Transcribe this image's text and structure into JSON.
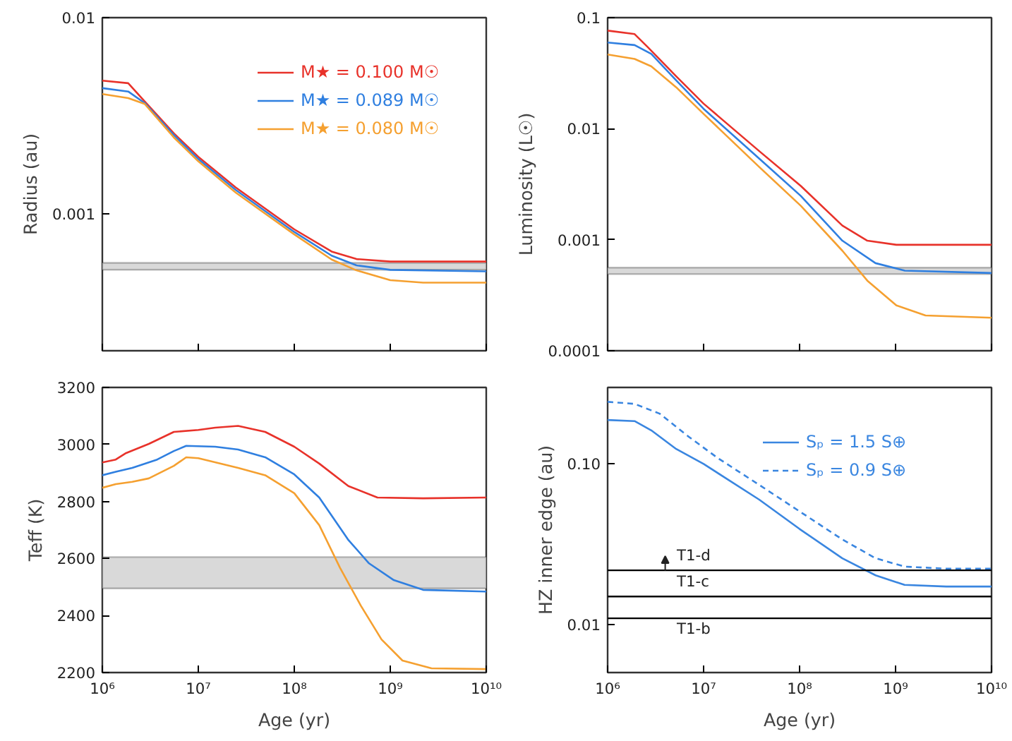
{
  "chart_data": [
    {
      "type": "line",
      "ylabel": "Radius (au)",
      "log": "xy",
      "grid": false,
      "legend": "top right",
      "tick_labels": "y",
      "xlim": [
        1000000,
        10000000000
      ],
      "ylim": [
        0.0002,
        0.01
      ],
      "xticks": [
        {
          "value": 1000000,
          "label": null
        },
        {
          "value": 10000000,
          "label": null
        },
        {
          "value": 100000000,
          "label": null
        },
        {
          "value": 1000000000,
          "label": null
        },
        {
          "value": 10000000000,
          "label": null
        }
      ],
      "yticks": [
        0.001,
        0.01
      ],
      "bands": [
        {
          "axis": "y",
          "from": 0.000518,
          "to": 0.000561,
          "color": "#d9d9d9"
        }
      ],
      "series": [
        {
          "name": "M★ = 0.100 M☉",
          "color": "#e8322a",
          "x": [
            1000000,
            1860000,
            2760000,
            5560000,
            10000000,
            24600000,
            100000000,
            245000000,
            445000000,
            1000000000,
            10000000000
          ],
          "values": [
            0.00477,
            0.00463,
            0.00374,
            0.00257,
            0.00195,
            0.00136,
            0.000832,
            0.000641,
            0.000587,
            0.00057,
            0.00057
          ]
        },
        {
          "name": "M★ = 0.089 M☉",
          "color": "#2f7fe0",
          "x": [
            1000000,
            1860000,
            2760000,
            5560000,
            10000000,
            24600000,
            100000000,
            245000000,
            445000000,
            1000000000,
            10000000000
          ],
          "values": [
            0.00437,
            0.0042,
            0.00367,
            0.00252,
            0.0019,
            0.00132,
            0.000807,
            0.000611,
            0.000545,
            0.000517,
            0.000508
          ]
        },
        {
          "name": "M★ = 0.080 M☉",
          "color": "#f5a030",
          "x": [
            1000000,
            1860000,
            2760000,
            5560000,
            10000000,
            24600000,
            100000000,
            245000000,
            445000000,
            1000000000,
            2200000000,
            10000000000
          ],
          "values": [
            0.00408,
            0.00389,
            0.00363,
            0.00245,
            0.00185,
            0.00128,
            0.000784,
            0.000584,
            0.000514,
            0.000458,
            0.000445,
            0.000445
          ]
        }
      ]
    },
    {
      "type": "line",
      "ylabel": "Luminosity (L☉)",
      "log": "xy",
      "grid": false,
      "tick_labels": "y",
      "xlim": [
        1000000,
        10000000000
      ],
      "ylim": [
        0.0001,
        0.1
      ],
      "xticks": [
        {
          "value": 1000000,
          "label": null
        },
        {
          "value": 10000000,
          "label": null
        },
        {
          "value": 100000000,
          "label": null
        },
        {
          "value": 1000000000,
          "label": null
        },
        {
          "value": 10000000000,
          "label": null
        }
      ],
      "yticks": [
        0.0001,
        0.001,
        0.01,
        0.1
      ],
      "bands": [
        {
          "axis": "y",
          "from": 0.00049,
          "to": 0.00056,
          "color": "#d9d9d9"
        }
      ],
      "series": [
        {
          "color": "#e8322a",
          "x": [
            1000000,
            1910000,
            2580000,
            5180000,
            10000000,
            38000000,
            103000000,
            279000000,
            508000000,
            1020000000,
            10000000000
          ],
          "values": [
            0.0764,
            0.0711,
            0.055,
            0.0296,
            0.0168,
            0.00628,
            0.00305,
            0.00134,
            0.00098,
            0.0009,
            0.0009
          ]
        },
        {
          "color": "#2f7fe0",
          "x": [
            1000000,
            1910000,
            2850000,
            5180000,
            10000000,
            38000000,
            103000000,
            279000000,
            618000000,
            1250000000,
            10000000000
          ],
          "values": [
            0.0597,
            0.0566,
            0.0471,
            0.0272,
            0.0151,
            0.00538,
            0.00248,
            0.00098,
            0.000615,
            0.000527,
            0.000501
          ]
        },
        {
          "color": "#f5a030",
          "x": [
            1000000,
            1910000,
            2850000,
            5180000,
            10000000,
            38000000,
            103000000,
            279000000,
            508000000,
            1020000000,
            2050000000,
            10000000000
          ],
          "values": [
            0.0466,
            0.0425,
            0.0364,
            0.0236,
            0.0136,
            0.00452,
            0.00202,
            0.000796,
            0.000428,
            0.000256,
            0.000208,
            0.000198
          ]
        }
      ]
    },
    {
      "type": "line",
      "xlabel": "Age (yr)",
      "ylabel": "Teff (K)",
      "log": "x",
      "grid": false,
      "xlim": [
        1000000,
        10000000000
      ],
      "ylim": [
        2200,
        3200
      ],
      "xticks": [
        {
          "value": 1000000,
          "label": "10⁶"
        },
        {
          "value": 10000000,
          "label": "10⁷"
        },
        {
          "value": 100000000,
          "label": "10⁸"
        },
        {
          "value": 1000000000,
          "label": "10⁹"
        },
        {
          "value": 10000000000,
          "label": "10¹⁰"
        }
      ],
      "yticks": [
        2200,
        2400,
        2600,
        2800,
        3000,
        3200
      ],
      "bands": [
        {
          "axis": "y",
          "from": 2495,
          "to": 2605,
          "color": "#d9d9d9"
        }
      ],
      "series": [
        {
          "color": "#e8322a",
          "x": [
            1000000,
            1380000,
            1770000,
            3050000,
            5560000,
            10000000,
            15000000,
            26000000,
            49800000,
            100000000,
            182000000,
            366000000,
            735000000,
            2200000000,
            10000000000
          ],
          "values": [
            2937,
            2947,
            2970,
            3002,
            3044,
            3051,
            3059,
            3065,
            3044,
            2992,
            2933,
            2854,
            2814,
            2811,
            2814
          ]
        },
        {
          "color": "#2f7fe0",
          "x": [
            1000000,
            1380000,
            2050000,
            3730000,
            5560000,
            7480000,
            15000000,
            26000000,
            49800000,
            100000000,
            182000000,
            366000000,
            601000000,
            1090000000,
            2200000000,
            10000000000
          ],
          "values": [
            2892,
            2904,
            2918,
            2947,
            2977,
            2995,
            2992,
            2982,
            2955,
            2895,
            2814,
            2665,
            2583,
            2524,
            2490,
            2484
          ]
        },
        {
          "color": "#f5a030",
          "x": [
            1000000,
            1380000,
            2050000,
            3050000,
            5560000,
            7480000,
            10000000,
            26000000,
            49800000,
            100000000,
            182000000,
            299000000,
            493000000,
            811000000,
            1340000000,
            2690000000,
            10000000000
          ],
          "values": [
            2848,
            2861,
            2869,
            2881,
            2925,
            2955,
            2952,
            2918,
            2892,
            2829,
            2717,
            2568,
            2435,
            2316,
            2242,
            2215,
            2212
          ]
        }
      ]
    },
    {
      "type": "line",
      "xlabel": "Age (yr)",
      "ylabel": "HZ inner edge (au)",
      "log": "xy",
      "grid": false,
      "legend": "top right",
      "xlim": [
        1000000,
        10000000000
      ],
      "ylim": [
        0.005,
        0.3
      ],
      "xticks": [
        {
          "value": 1000000,
          "label": "10⁶"
        },
        {
          "value": 10000000,
          "label": "10⁷"
        },
        {
          "value": 100000000,
          "label": "10⁸"
        },
        {
          "value": 1000000000,
          "label": "10⁹"
        },
        {
          "value": 10000000000,
          "label": "10¹⁰"
        }
      ],
      "yticks": [
        {
          "value": 0.01,
          "label": "0.01"
        },
        {
          "value": 0.1,
          "label": "0.10"
        }
      ],
      "ref_lines": [
        {
          "axis": "y",
          "value": 0.0217,
          "label": "T1-d",
          "color": "#000000"
        },
        {
          "axis": "y",
          "value": 0.0149,
          "label": "T1-c",
          "color": "#000000"
        },
        {
          "axis": "y",
          "value": 0.0109,
          "label": "T1-b",
          "color": "#000000"
        }
      ],
      "series": [
        {
          "name": "Sₚ = 1.5 S⊕",
          "color": "#3a86e0",
          "line_style": "solid",
          "x": [
            1000000,
            1910000,
            2850000,
            5180000,
            10000000,
            38000000,
            100000000,
            279000000,
            620000000,
            1240000000,
            3370000000,
            10000000000
          ],
          "values": [
            0.188,
            0.185,
            0.162,
            0.124,
            0.1,
            0.0599,
            0.0393,
            0.0258,
            0.0202,
            0.0176,
            0.0172,
            0.0172
          ]
        },
        {
          "name": "Sₚ = 0.9 S⊕",
          "color": "#3a86e0",
          "line_style": "dashed",
          "x": [
            1000000,
            1910000,
            3480000,
            6980000,
            14000000,
            38000000,
            100000000,
            279000000,
            620000000,
            1240000000,
            3370000000,
            10000000000
          ],
          "values": [
            0.244,
            0.237,
            0.206,
            0.148,
            0.109,
            0.074,
            0.0506,
            0.0338,
            0.0258,
            0.0229,
            0.0222,
            0.0222
          ]
        }
      ]
    }
  ]
}
